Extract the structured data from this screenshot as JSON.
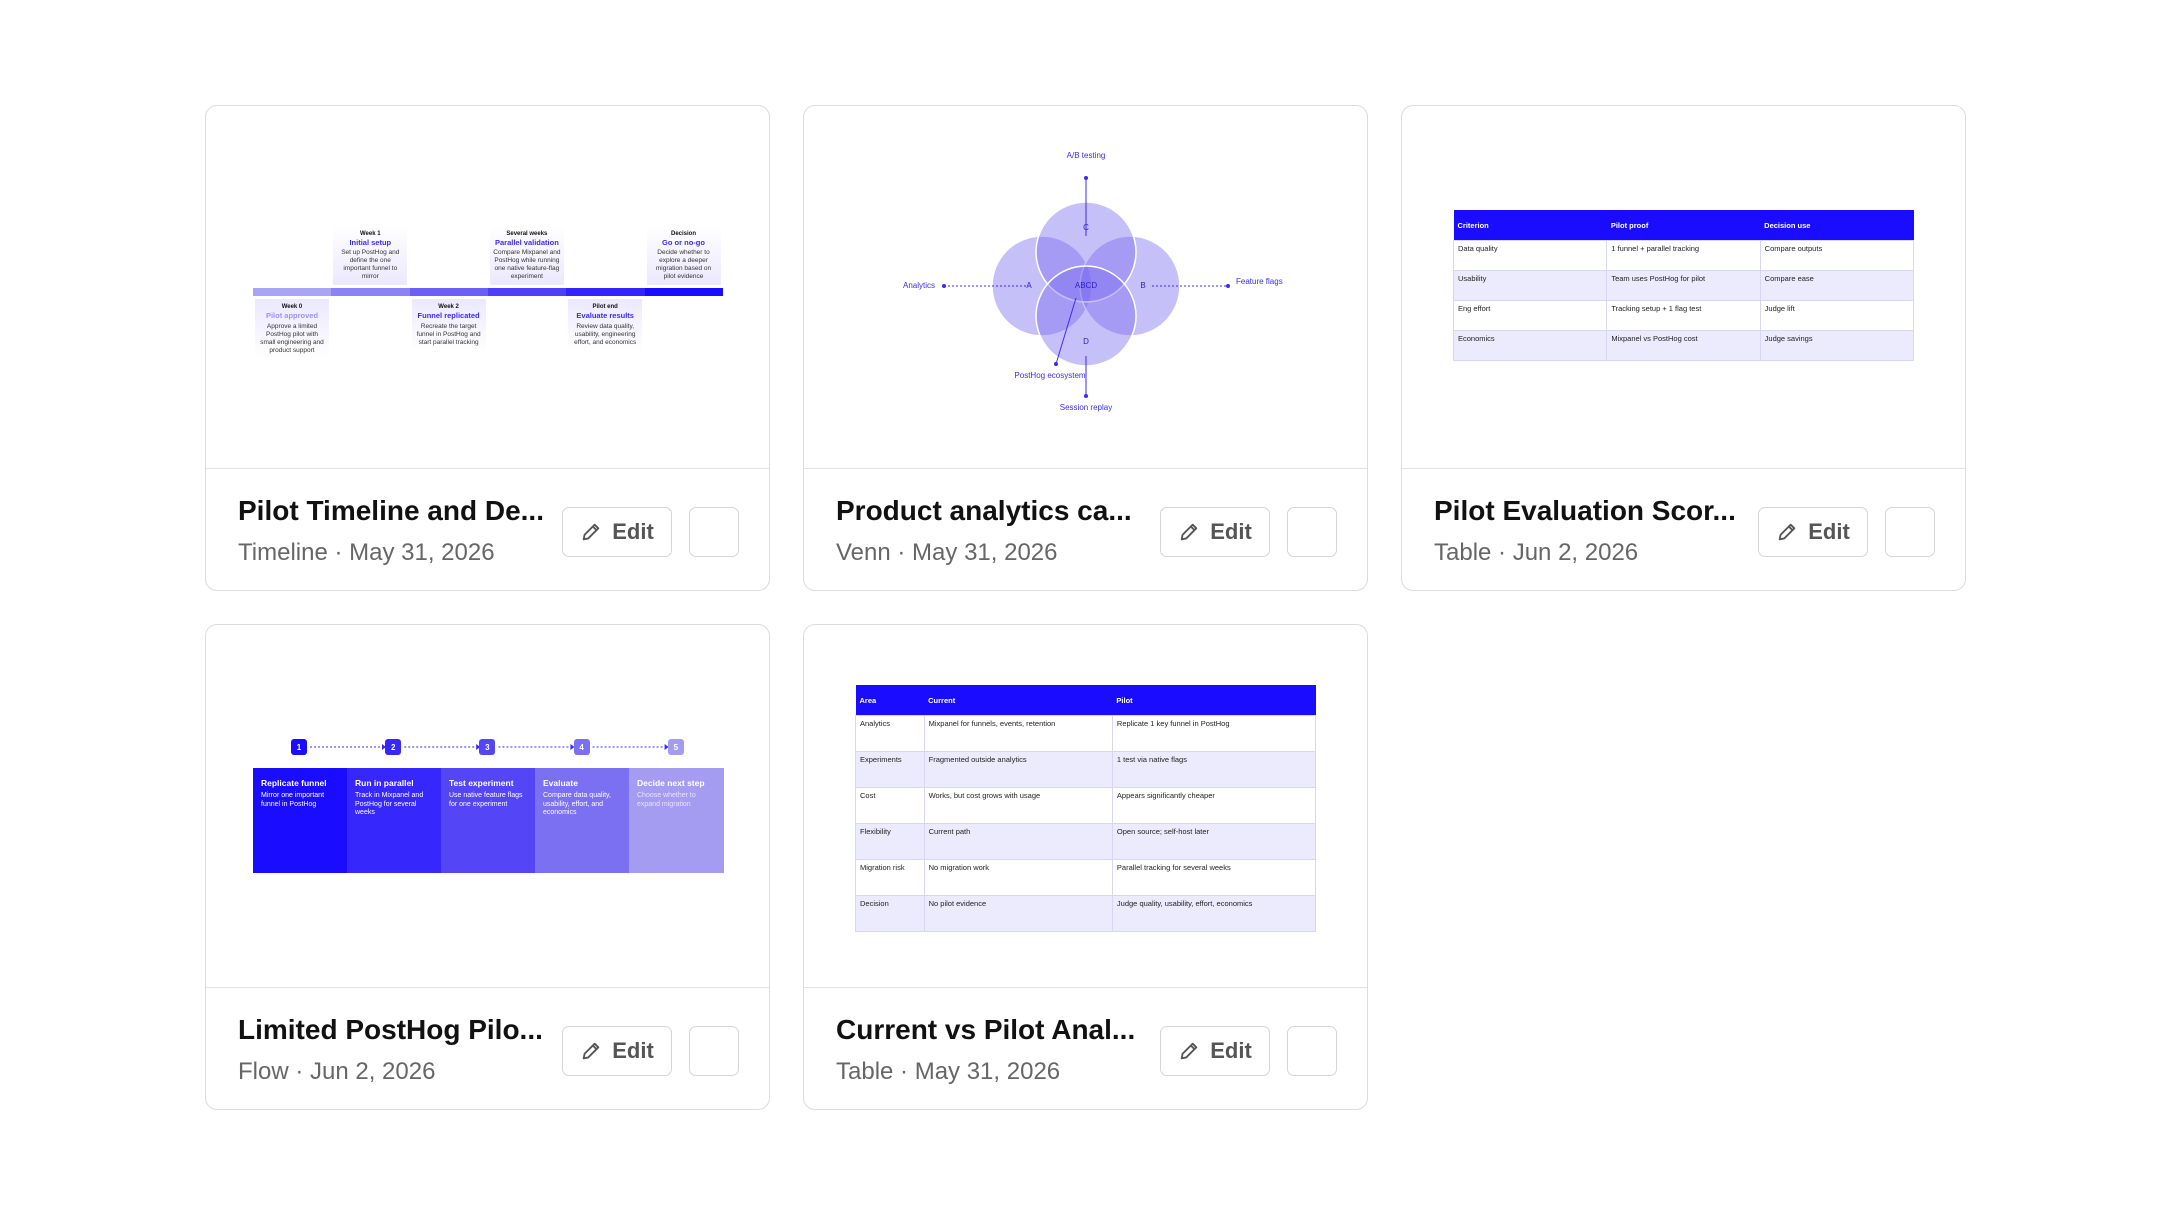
{
  "cards": [
    {
      "title": "Pilot Timeline and De...",
      "meta": "Timeline · May 31, 2026",
      "action": "Edit",
      "thumbnail": {
        "kind": "timeline",
        "milestones": [
          {
            "label": "Week 0",
            "title": "Pilot approved",
            "text": "Approve a limited PostHog pilot with small engineering and product support",
            "side": "below"
          },
          {
            "label": "Week 1",
            "title": "Initial setup",
            "text": "Set up PostHog and define the one important funnel to mirror",
            "side": "above"
          },
          {
            "label": "Week 2",
            "title": "Funnel replicated",
            "text": "Recreate the target funnel in PostHog and start parallel tracking",
            "side": "below"
          },
          {
            "label": "Several weeks",
            "title": "Parallel validation",
            "text": "Compare Mixpanel and PostHog while running one native feature-flag experiment",
            "side": "above"
          },
          {
            "label": "Pilot end",
            "title": "Evaluate results",
            "text": "Review data quality, usability, engineering effort, and economics",
            "side": "below"
          },
          {
            "label": "Decision",
            "title": "Go or no-go",
            "text": "Decide whether to explore a deeper migration based on pilot evidence",
            "side": "above"
          }
        ]
      }
    },
    {
      "title": "Product analytics ca...",
      "meta": "Venn · May 31, 2026",
      "action": "Edit",
      "thumbnail": {
        "kind": "venn",
        "sets": [
          "A",
          "B",
          "C",
          "D"
        ],
        "center": "ABCD",
        "labels": {
          "top": "A/B testing",
          "left": "Analytics",
          "right": "Feature flags",
          "bottom": "Session replay",
          "inner": "PostHog ecosystem"
        }
      }
    },
    {
      "title": "Pilot Evaluation Scor...",
      "meta": "Table · Jun 2, 2026",
      "action": "Edit",
      "thumbnail": {
        "kind": "table",
        "columns": [
          "Criterion",
          "Pilot proof",
          "Decision use"
        ],
        "rows": [
          [
            "Data quality",
            "1 funnel + parallel tracking",
            "Compare outputs"
          ],
          [
            "Usability",
            "Team uses PostHog for pilot",
            "Compare ease"
          ],
          [
            "Eng effort",
            "Tracking setup + 1 flag test",
            "Judge lift"
          ],
          [
            "Economics",
            "Mixpanel vs PostHog cost",
            "Judge savings"
          ]
        ]
      }
    },
    {
      "title": "Limited PostHog Pilo...",
      "meta": "Flow · Jun 2, 2026",
      "action": "Edit",
      "thumbnail": {
        "kind": "flow",
        "steps": [
          {
            "number": 1,
            "title": "Replicate funnel",
            "text": "Mirror one important funnel in PostHog"
          },
          {
            "number": 2,
            "title": "Run in parallel",
            "text": "Track in Mixpanel and PostHog for several weeks"
          },
          {
            "number": 3,
            "title": "Test experiment",
            "text": "Use native feature flags for one experiment"
          },
          {
            "number": 4,
            "title": "Evaluate",
            "text": "Compare data quality, usability, effort, and economics"
          },
          {
            "number": 5,
            "title": "Decide next step",
            "text": "Choose whether to expand migration"
          }
        ]
      }
    },
    {
      "title": "Current vs Pilot Anal...",
      "meta": "Table · May 31, 2026",
      "action": "Edit",
      "thumbnail": {
        "kind": "table",
        "columns": [
          "Area",
          "Current",
          "Pilot"
        ],
        "rows": [
          [
            "Analytics",
            "Mixpanel for funnels, events, retention",
            "Replicate 1 key funnel in PostHog"
          ],
          [
            "Experiments",
            "Fragmented outside analytics",
            "1 test via native flags"
          ],
          [
            "Cost",
            "Works, but cost grows with usage",
            "Appears significantly cheaper"
          ],
          [
            "Flexibility",
            "Current path",
            "Open source; self-host later"
          ],
          [
            "Migration risk",
            "No migration work",
            "Parallel tracking for several weeks"
          ],
          [
            "Decision",
            "No pilot evidence",
            "Judge quality, usability, effort, economics"
          ]
        ]
      }
    }
  ]
}
